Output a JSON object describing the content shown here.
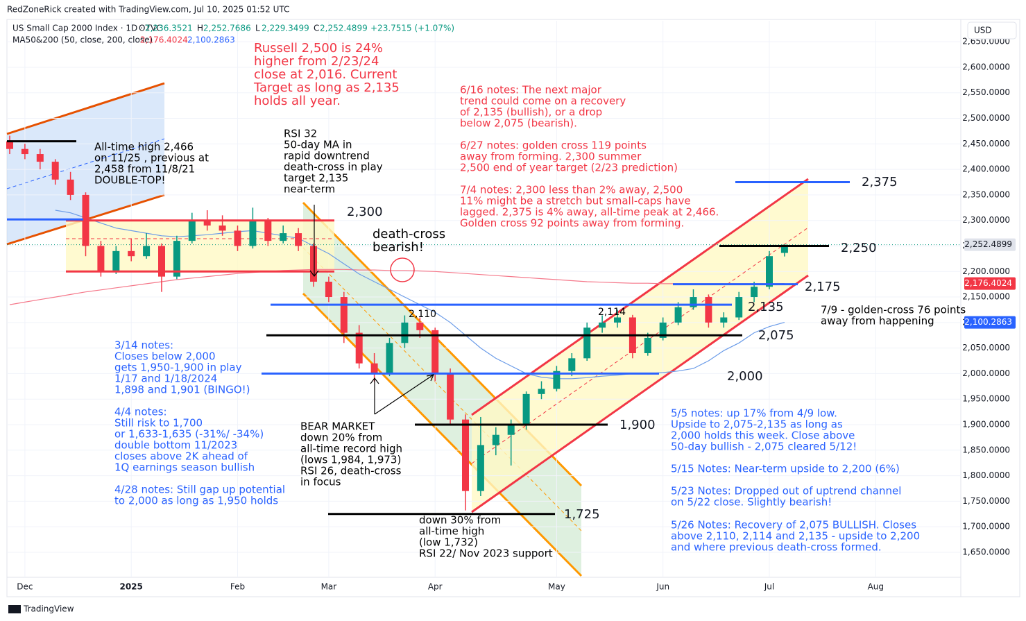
{
  "chart_data": {
    "type": "candlestick",
    "header": {
      "author_line": "RedZoneRick created with TradingView.com, Jul 10, 2025 01:52 UTC",
      "symbol": "US Small Cap 2000 Index · 1D · TVC",
      "ohlc": [
        {
          "key": "O",
          "value": "2,236.3521"
        },
        {
          "key": "H",
          "value": "2,252.7686"
        },
        {
          "key": "L",
          "value": "2,229.3499"
        },
        {
          "key": "C",
          "value": "2,252.4899"
        }
      ],
      "change": "+23.7515 (+1.07%)",
      "indicator": "MA50&200 (50, close, 200, close)",
      "indicator_values": [
        "2,176.4024",
        "2,100.2863"
      ],
      "currency": "USD",
      "footer": "TradingView"
    },
    "categories": [
      null,
      "Dec",
      null,
      null,
      null,
      null,
      null,
      null,
      "2025",
      null,
      null,
      null,
      null,
      null,
      null,
      "Feb",
      null,
      null,
      null,
      null,
      null,
      "Mar",
      null,
      null,
      null,
      null,
      null,
      null,
      "Apr",
      null,
      null,
      null,
      null,
      null,
      null,
      null,
      "May",
      null,
      null,
      null,
      null,
      null,
      null,
      "Jun",
      null,
      null,
      null,
      null,
      null,
      null,
      "Jul",
      null,
      null,
      null,
      null,
      null,
      null,
      "Aug",
      null,
      null,
      null,
      null,
      null
    ],
    "open": [
      2455,
      2440,
      2430,
      2415,
      2380,
      2350,
      2250,
      2200,
      2240,
      2230,
      2250,
      2190,
      2260,
      2300,
      2290,
      2280,
      2250,
      2300,
      2260,
      2275,
      2250,
      2180,
      2150,
      2080,
      2020,
      2000,
      2060,
      2100,
      2085,
      2000,
      1910,
      1770,
      1860,
      1880,
      1900,
      1960,
      1970,
      2005,
      2030,
      2090,
      2100,
      2110,
      2040,
      2070,
      2100,
      2130,
      2150,
      2100,
      2110,
      2150,
      2170,
      2236.3521,
      null,
      null,
      null,
      null,
      null,
      null,
      null,
      null,
      null,
      null,
      null
    ],
    "high": [
      2466,
      2450,
      2440,
      2420,
      2395,
      2355,
      2260,
      2250,
      2265,
      2275,
      2255,
      2270,
      2315,
      2320,
      2310,
      2290,
      2325,
      2305,
      2290,
      2285,
      2255,
      2190,
      2160,
      2095,
      2040,
      2070,
      2114,
      2110,
      2090,
      2010,
      1920,
      1915,
      1895,
      1910,
      1965,
      1985,
      2015,
      2040,
      2100,
      2114,
      2125,
      2115,
      2080,
      2110,
      2140,
      2165,
      2155,
      2120,
      2160,
      2180,
      2240,
      2252.7686,
      null,
      null,
      null,
      null,
      null,
      null,
      null,
      null,
      null,
      null,
      null
    ],
    "low": [
      2430,
      2420,
      2400,
      2370,
      2340,
      2230,
      2190,
      2195,
      2220,
      2225,
      2160,
      2185,
      2255,
      2280,
      2270,
      2240,
      2245,
      2250,
      2255,
      2240,
      2170,
      2140,
      2060,
      2010,
      1984,
      1995,
      2050,
      2070,
      1985,
      1900,
      1732,
      1760,
      1840,
      1820,
      1890,
      1950,
      1965,
      1995,
      2025,
      2080,
      2090,
      2030,
      2035,
      2065,
      2095,
      2125,
      2090,
      2090,
      2105,
      2140,
      2165,
      2229.3499,
      null,
      null,
      null,
      null,
      null,
      null,
      null,
      null,
      null,
      null,
      null
    ],
    "close": [
      2440,
      2430,
      2415,
      2380,
      2350,
      2250,
      2200,
      2240,
      2230,
      2250,
      2190,
      2260,
      2300,
      2290,
      2280,
      2250,
      2300,
      2260,
      2275,
      2250,
      2180,
      2150,
      2080,
      2020,
      2000,
      2060,
      2100,
      2085,
      2000,
      1910,
      1770,
      1860,
      1880,
      1900,
      1960,
      1970,
      2005,
      2030,
      2090,
      2100,
      2110,
      2040,
      2070,
      2100,
      2130,
      2150,
      2100,
      2110,
      2150,
      2170,
      2230,
      2252.4899,
      null,
      null,
      null,
      null,
      null,
      null,
      null,
      null,
      null,
      null,
      null
    ],
    "up_color": "#089981",
    "down_color": "#f23645",
    "ma_lines": [
      {
        "color": "#f5788a",
        "values": [
          2135,
          2140,
          2145,
          2150,
          2155,
          2160,
          2164,
          2168,
          2172,
          2176,
          2180,
          2184,
          2187,
          2190,
          2193,
          2196,
          2198,
          2200,
          2202,
          2203,
          2204,
          2204,
          2204,
          2203,
          2203,
          2202,
          2202,
          2201,
          2200,
          2198,
          2196,
          2194,
          2192,
          2190,
          2188,
          2186,
          2184,
          2182,
          2180,
          2179,
          2178,
          2177,
          2177,
          2176,
          2176,
          2176,
          2176,
          2176,
          2176,
          2176,
          2176,
          2176.4024,
          null,
          null,
          null,
          null,
          null,
          null,
          null,
          null,
          null,
          null,
          null
        ]
      },
      {
        "color": "#6a9be8",
        "values": [
          null,
          null,
          null,
          2320,
          2315,
          2305,
          2295,
          2285,
          2280,
          2275,
          2270,
          2268,
          2270,
          2272,
          2275,
          2278,
          2280,
          2275,
          2270,
          2265,
          2250,
          2235,
          2215,
          2195,
          2180,
          2165,
          2150,
          2135,
          2120,
          2100,
          2075,
          2050,
          2030,
          2015,
          2000,
          1993,
          1990,
          1990,
          1992,
          1995,
          1997,
          2000,
          2000,
          2002,
          2005,
          2010,
          2025,
          2045,
          2060,
          2080,
          2092,
          2100.2863,
          null,
          null,
          null,
          null,
          null,
          null,
          null,
          null,
          null,
          null,
          null
        ]
      }
    ],
    "ylim": [
      1601,
      2691
    ],
    "yticks": [
      {
        "value": 1650,
        "label": "1,650.0000"
      },
      {
        "value": 1700,
        "label": "1,700.0000"
      },
      {
        "value": 1750,
        "label": "1,750.0000"
      },
      {
        "value": 1800,
        "label": "1,800.0000"
      },
      {
        "value": 1850,
        "label": "1,850.0000"
      },
      {
        "value": 1900,
        "label": "1,900.0000"
      },
      {
        "value": 1950,
        "label": "1,950.0000"
      },
      {
        "value": 2000,
        "label": "2,000.0000"
      },
      {
        "value": 2050,
        "label": "2,050.0000"
      },
      {
        "value": 2100,
        "label": "2,100.0000"
      },
      {
        "value": 2150,
        "label": "2,150.0000"
      },
      {
        "value": 2200,
        "label": "2,200.0000"
      },
      {
        "value": 2250,
        "label": "2,250.0000"
      },
      {
        "value": 2300,
        "label": "2,300.0000"
      },
      {
        "value": 2350,
        "label": "2,350.0000"
      },
      {
        "value": 2400,
        "label": "2,400.0000"
      },
      {
        "value": 2450,
        "label": "2,450.0000"
      },
      {
        "value": 2500,
        "label": "2,500.0000"
      },
      {
        "value": 2550,
        "label": "2,550.0000"
      },
      {
        "value": 2600,
        "label": "2,600.0000"
      },
      {
        "value": 2650,
        "label": "2,650.0000"
      }
    ],
    "grid": true,
    "price_labels": [
      {
        "value": 2252.4899,
        "label": "2,252.4899",
        "color": "#e0e3eb",
        "text_color": "#131722"
      },
      {
        "value": 2176.4024,
        "label": "2,176.4024",
        "color": "#f23645",
        "text_color": "#ffffff"
      },
      {
        "value": 2100.2863,
        "label": "2,100.2863",
        "color": "#2962ff",
        "text_color": "#ffffff"
      }
    ],
    "levels": [
      {
        "value": 2300,
        "label": "2,300",
        "color": "#f23645"
      },
      {
        "value": 2200,
        "color": "#f23645"
      },
      {
        "value": 2375,
        "label": "2,375",
        "color": "#2962ff"
      },
      {
        "value": 2250,
        "label": "2,250",
        "color": "#000000"
      },
      {
        "value": 2175,
        "label": "2,175",
        "color": "#2962ff"
      },
      {
        "value": 2135,
        "label": "2,135",
        "color": "#2962ff"
      },
      {
        "value": 2075,
        "label": "2,075",
        "color": "#000000"
      },
      {
        "value": 2000,
        "label": "2,000",
        "color": "#2962ff"
      },
      {
        "value": 1900,
        "label": "1,900",
        "color": "#000000"
      },
      {
        "value": 1725,
        "label": "1,725",
        "color": "#000000"
      },
      {
        "value": 2455,
        "color": "#000000"
      },
      {
        "value": 2302,
        "color": "#2962ff"
      }
    ],
    "annotations": [
      {
        "color": "#f23645",
        "lines": [
          "Russell 2,500 is 24%",
          "higher from 2/23/24",
          "close at 2,016. Current",
          "Target as long as 2,135",
          "holds all year."
        ]
      },
      {
        "color": "#f23645",
        "lines": [
          "6/16 notes: The next major",
          "trend could come on a recovery",
          "of 2,135 (bullish), or a drop",
          "below 2,075 (bearish)."
        ]
      },
      {
        "color": "#f23645",
        "lines": [
          "6/27 notes: golden cross 119 points",
          "away from forming. 2,300 summer",
          "2,500 end of year target (2/23 prediction)"
        ]
      },
      {
        "color": "#f23645",
        "lines": [
          "7/4 notes: 2,300 less than 2% away, 2,500",
          "11% might be a stretch but small-caps have",
          "lagged. 2,375 is 4% away, all-time peak at 2,466.",
          "Golden cross 92 points away from forming."
        ]
      },
      {
        "color": "#000000",
        "lines": [
          "All-time high 2,466",
          "on 11/25 , previous at",
          "2,458 from 11/8/21",
          "DOUBLE-TOP!"
        ]
      },
      {
        "color": "#000000",
        "lines": [
          "RSI 32",
          "50-day MA in",
          "rapid downtrend",
          "death-cross in play",
          "target 2,135",
          "near-term"
        ]
      },
      {
        "color": "#000000",
        "lines": [
          "death-cross",
          "bearish!"
        ]
      },
      {
        "color": "#2962ff",
        "lines": [
          "3/14 notes:",
          "Closes below 2,000",
          "gets 1,950-1,900 in play",
          "1/17 and 1/18/2024",
          "1,898 and 1,901 (BINGO!)"
        ]
      },
      {
        "color": "#2962ff",
        "lines": [
          "4/4 notes:",
          "Still risk to 1,700",
          "or 1,633-1,635 (-31%/ -34%)",
          "double bottom 11/2023",
          "closes above 2K ahead of",
          "1Q earnings season bullish"
        ]
      },
      {
        "color": "#2962ff",
        "lines": [
          "4/28 notes: Still gap up potential",
          "to 2,000 as long as 1,950 holds"
        ]
      },
      {
        "color": "#000000",
        "lines": [
          "BEAR MARKET",
          "down 20% from",
          "all-time record high",
          "(lows 1,984, 1,973)",
          "RSI 26, death-cross",
          "in focus"
        ]
      },
      {
        "color": "#000000",
        "lines": [
          "down 30% from",
          "all-time high",
          "(low 1,732)",
          "RSI 22/ Nov 2023 support"
        ]
      },
      {
        "color": "#2962ff",
        "lines": [
          "5/5 notes: up 17% from 4/9 low.",
          "Upside to 2,075-2,135 as long as",
          "2,000 holds this week. Close above",
          "50-day bullish - 2,075 cleared 5/12!"
        ]
      },
      {
        "color": "#2962ff",
        "lines": [
          "5/15 Notes: Near-term upside to 2,200 (6%)"
        ]
      },
      {
        "color": "#2962ff",
        "lines": [
          "5/23 Notes: Dropped out of uptrend channel",
          "on 5/22 close. Slightly bearish!"
        ]
      },
      {
        "color": "#2962ff",
        "lines": [
          "5/26 Notes: Recovery of 2,075 BULLISH. Closes",
          "above 2,110, 2,114 and 2,135 - upside to 2,200",
          "and where previous death-cross formed."
        ]
      },
      {
        "color": "#000000",
        "lines": [
          "7/9 - golden-cross 76 points",
          "away from happening"
        ]
      },
      {
        "color": "#000000",
        "lines": [
          "2,110"
        ]
      },
      {
        "color": "#000000",
        "lines": [
          "2,114"
        ]
      }
    ]
  }
}
